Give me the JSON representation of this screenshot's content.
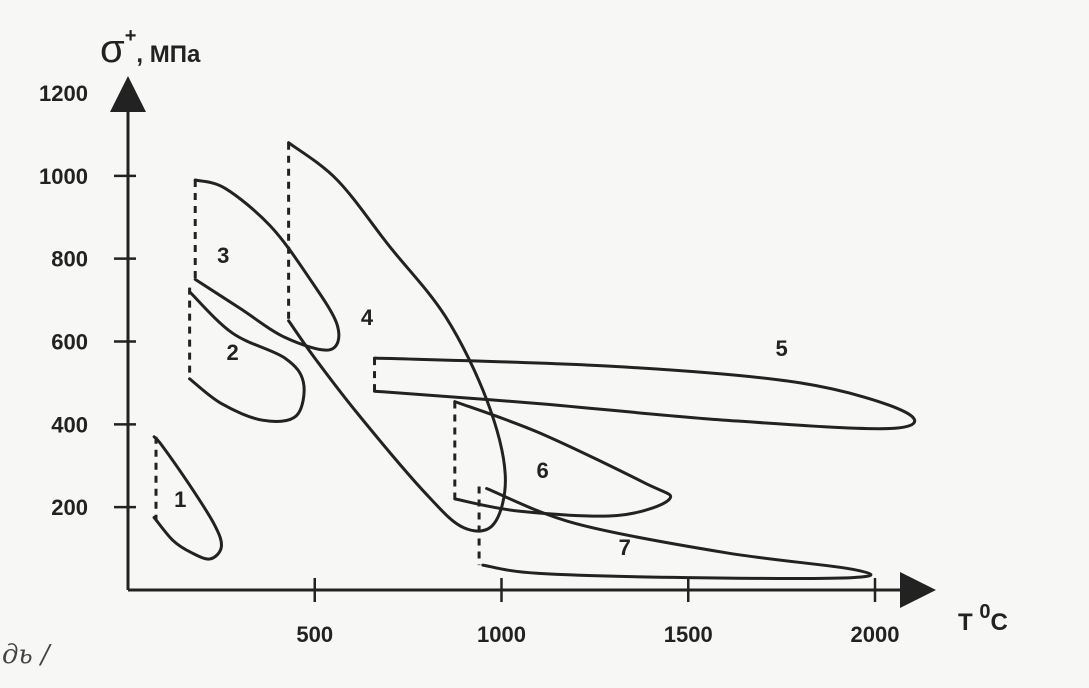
{
  "chart_data": {
    "type": "line",
    "ylabel": {
      "symbol": "σ",
      "superscript": "+",
      "unit": ", МПа"
    },
    "xlabel": {
      "symbol": "T",
      "superscript": "0",
      "unit": "C"
    },
    "xlim": [
      0,
      2100
    ],
    "ylim": [
      0,
      1200
    ],
    "xticks": [
      500,
      1000,
      1500,
      2000
    ],
    "yticks": [
      200,
      400,
      600,
      800,
      1000,
      1200
    ],
    "grid": false,
    "series": [
      {
        "name": "1",
        "label_at": [
          140,
          200
        ],
        "dashed_from": [
          75,
          370
        ],
        "dashed_to": [
          75,
          170
        ],
        "points": [
          [
            70,
            175
          ],
          [
            120,
            120
          ],
          [
            170,
            90
          ],
          [
            220,
            75
          ],
          [
            250,
            105
          ],
          [
            230,
            160
          ],
          [
            160,
            260
          ],
          [
            90,
            350
          ],
          [
            70,
            370
          ]
        ]
      },
      {
        "name": "2",
        "label_at": [
          280,
          555
        ],
        "dashed_from": [
          165,
          730
        ],
        "dashed_to": [
          165,
          510
        ],
        "points": [
          [
            165,
            720
          ],
          [
            280,
            620
          ],
          [
            420,
            560
          ],
          [
            470,
            500
          ],
          [
            450,
            420
          ],
          [
            360,
            410
          ],
          [
            250,
            450
          ],
          [
            165,
            510
          ]
        ]
      },
      {
        "name": "3",
        "label_at": [
          255,
          790
        ],
        "dashed_from": [
          180,
          990
        ],
        "dashed_to": [
          180,
          750
        ],
        "points": [
          [
            180,
            750
          ],
          [
            300,
            680
          ],
          [
            420,
            610
          ],
          [
            540,
            580
          ],
          [
            560,
            640
          ],
          [
            480,
            760
          ],
          [
            380,
            880
          ],
          [
            260,
            970
          ],
          [
            180,
            990
          ]
        ]
      },
      {
        "name": "4",
        "label_at": [
          640,
          640
        ],
        "dashed_from": [
          430,
          1080
        ],
        "dashed_to": [
          430,
          650
        ],
        "points": [
          [
            430,
            1080
          ],
          [
            560,
            990
          ],
          [
            700,
            830
          ],
          [
            850,
            660
          ],
          [
            960,
            460
          ],
          [
            1010,
            280
          ],
          [
            980,
            160
          ],
          [
            900,
            150
          ],
          [
            800,
            230
          ],
          [
            620,
            420
          ],
          [
            500,
            560
          ],
          [
            430,
            650
          ]
        ]
      },
      {
        "name": "5",
        "label_at": [
          1750,
          565
        ],
        "dashed_from": [
          660,
          560
        ],
        "dashed_to": [
          660,
          480
        ],
        "points": [
          [
            660,
            560
          ],
          [
            1300,
            540
          ],
          [
            1800,
            500
          ],
          [
            2080,
            430
          ],
          [
            2040,
            390
          ],
          [
            1600,
            410
          ],
          [
            1100,
            450
          ],
          [
            660,
            480
          ]
        ]
      },
      {
        "name": "6",
        "label_at": [
          1110,
          270
        ],
        "dashed_from": [
          875,
          455
        ],
        "dashed_to": [
          875,
          220
        ],
        "points": [
          [
            875,
            455
          ],
          [
            1100,
            380
          ],
          [
            1380,
            260
          ],
          [
            1450,
            220
          ],
          [
            1310,
            180
          ],
          [
            1050,
            190
          ],
          [
            875,
            220
          ]
        ]
      },
      {
        "name": "7",
        "label_at": [
          1330,
          85
        ],
        "dashed_from": [
          940,
          250
        ],
        "dashed_to": [
          940,
          60
        ],
        "points": [
          [
            960,
            245
          ],
          [
            1200,
            160
          ],
          [
            1600,
            90
          ],
          [
            1940,
            50
          ],
          [
            1940,
            30
          ],
          [
            1500,
            30
          ],
          [
            1100,
            40
          ],
          [
            950,
            60
          ]
        ]
      }
    ]
  },
  "margin_note": "дь /"
}
